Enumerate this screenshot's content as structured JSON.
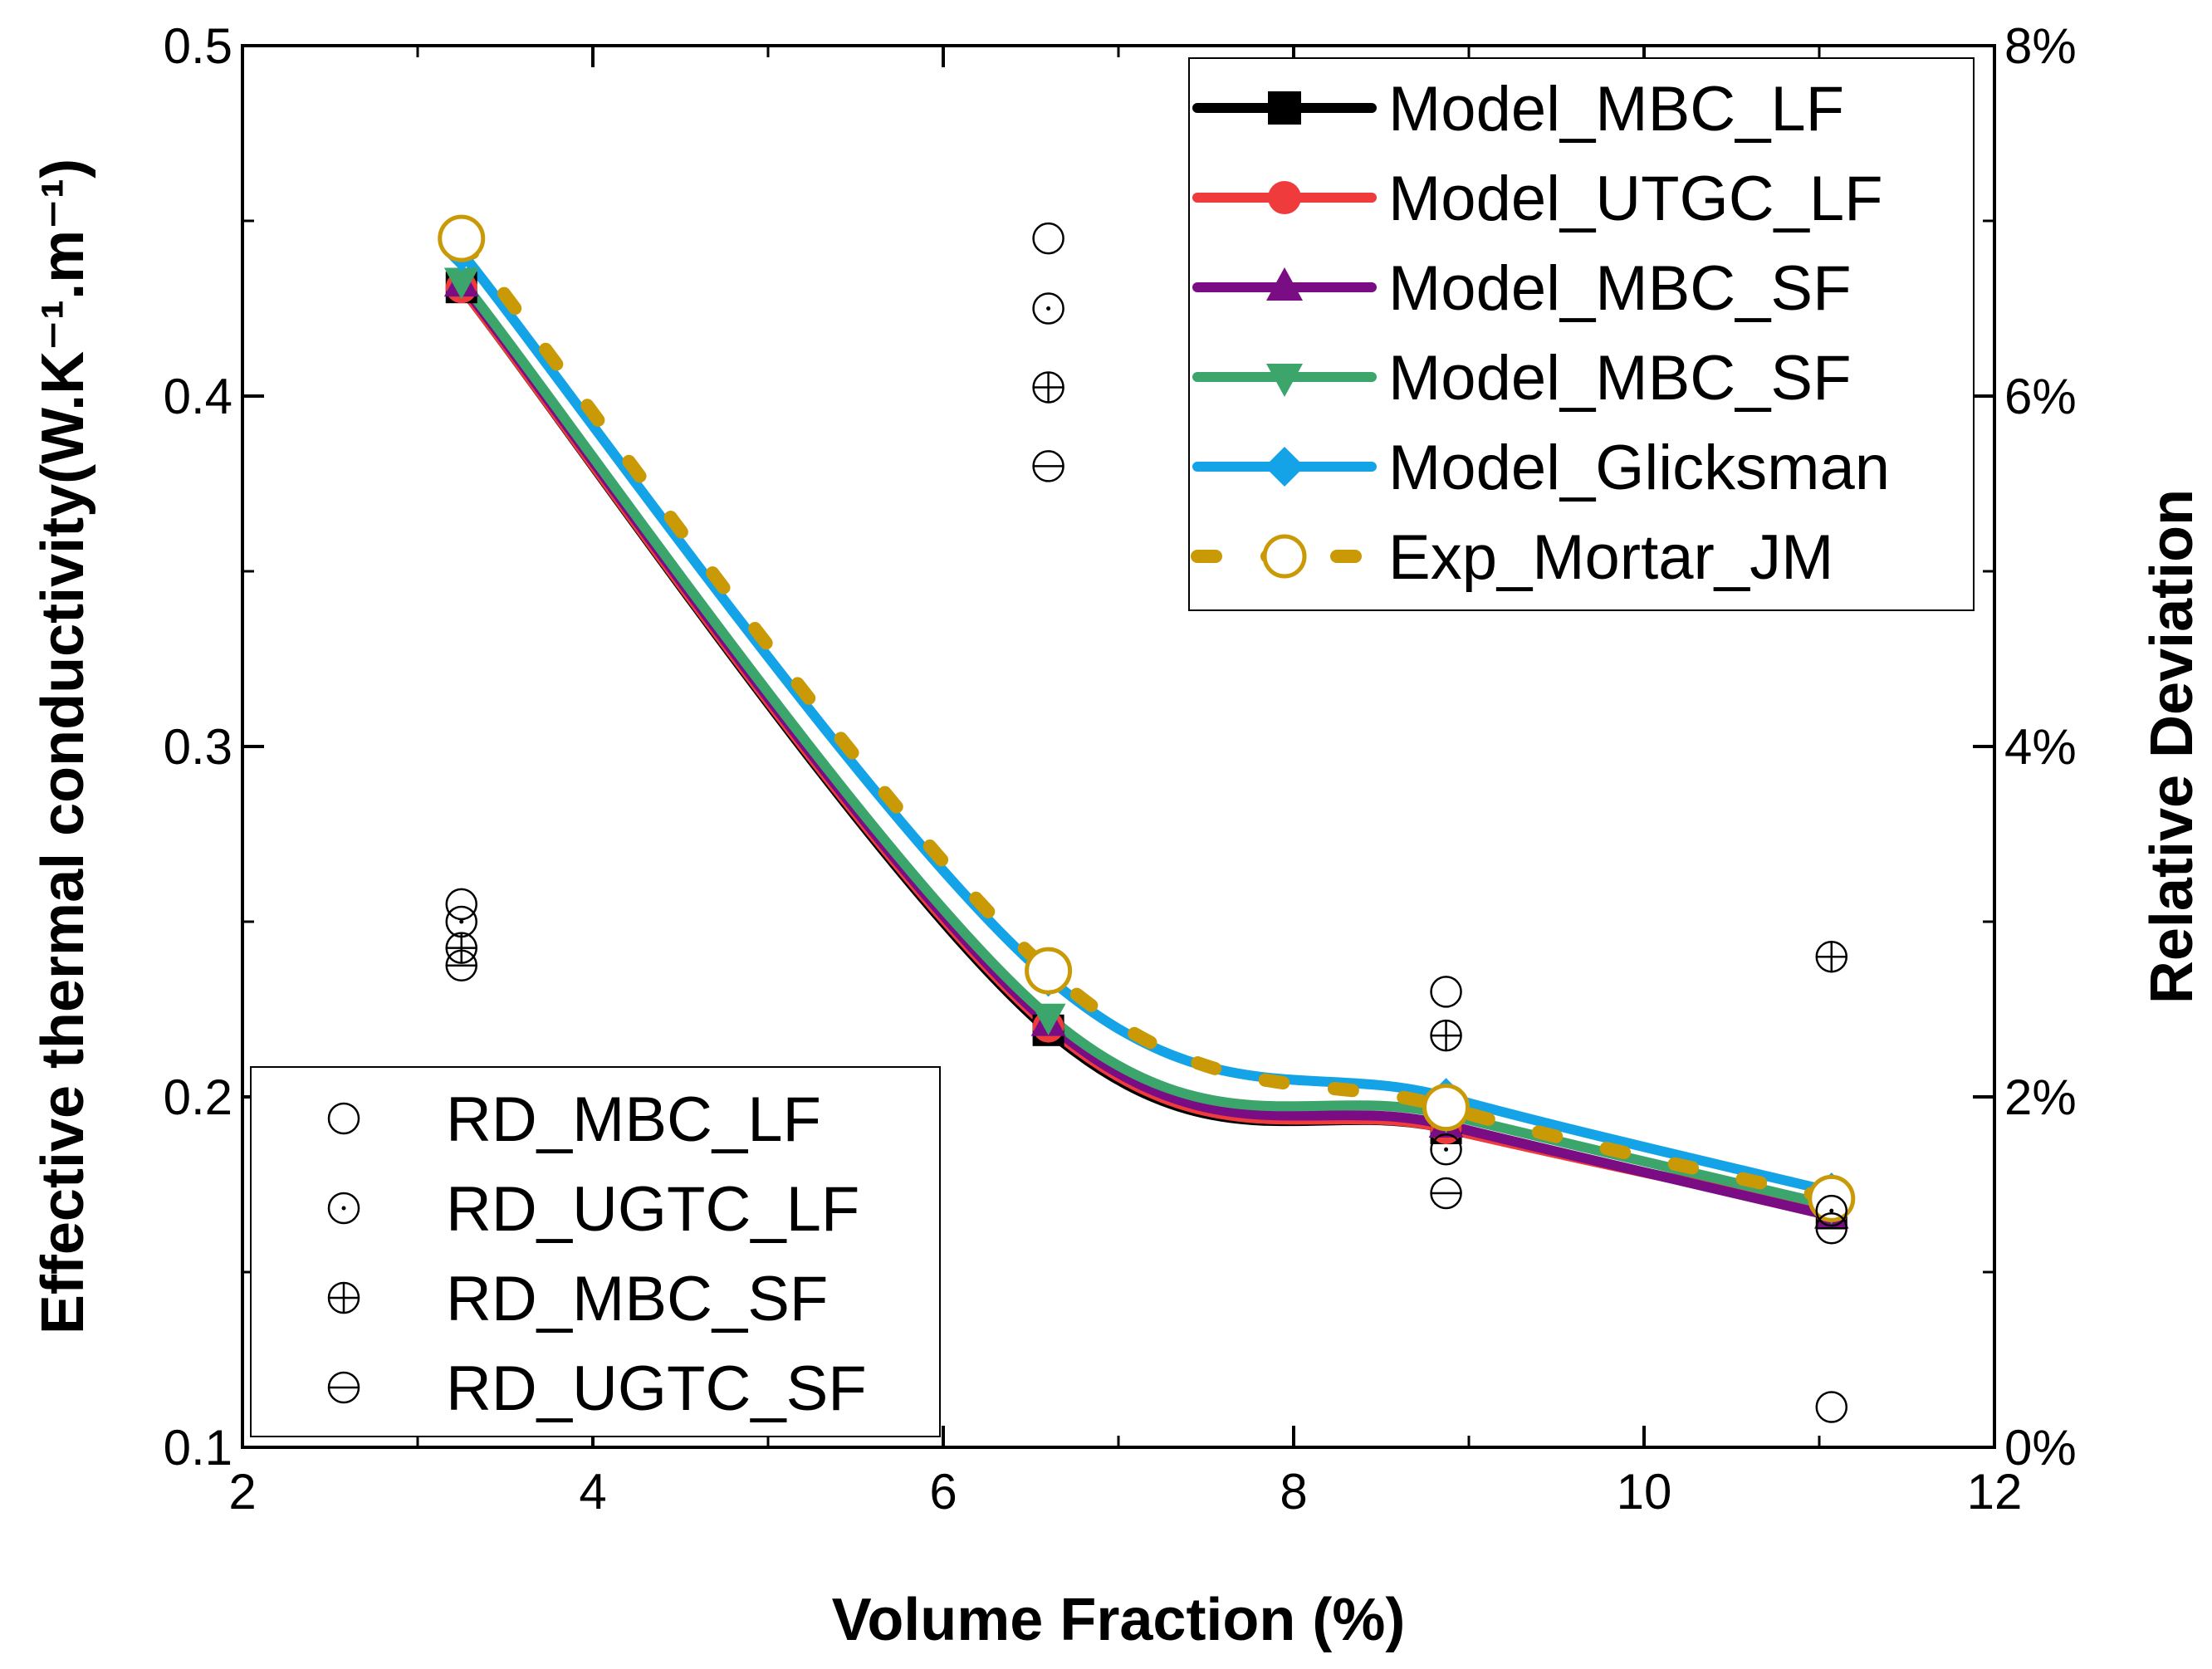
{
  "chart_data": {
    "type": "line",
    "title": "",
    "xlabel": "Volume Fraction (%)",
    "ylabel": "Effective thermal conductivity(W.K⁻¹.m⁻¹)",
    "y2label": "Relative Deviation",
    "xlim": [
      2,
      12
    ],
    "ylim": [
      0.1,
      0.5
    ],
    "y2lim": [
      0,
      8
    ],
    "x_ticks": [
      "2",
      "4",
      "6",
      "8",
      "10",
      "12"
    ],
    "y_ticks": [
      "0.1",
      "0.2",
      "0.3",
      "0.4",
      "0.5"
    ],
    "y2_ticks": [
      "0%",
      "2%",
      "4%",
      "6%",
      "8%"
    ],
    "x": [
      3.25,
      6.6,
      8.87,
      11.07
    ],
    "series": [
      {
        "name": "Model_MBC_LF",
        "axis": "left",
        "color": "#000000",
        "marker": "square",
        "values": [
          0.431,
          0.219,
          0.191,
          0.167
        ]
      },
      {
        "name": "Model_UTGC_LF",
        "axis": "left",
        "color": "#ef3b3b",
        "marker": "circle",
        "values": [
          0.431,
          0.22,
          0.191,
          0.167
        ]
      },
      {
        "name": "Model_MBC_SF",
        "axis": "left",
        "color": "#7b0d84",
        "marker": "triangle-up",
        "values": [
          0.432,
          0.221,
          0.192,
          0.166
        ]
      },
      {
        "name": "Model_MBC_SF",
        "axis": "left",
        "color": "#3ca56b",
        "marker": "triangle-down",
        "values": [
          0.433,
          0.223,
          0.195,
          0.169
        ]
      },
      {
        "name": "Model_Glicksman",
        "axis": "left",
        "color": "#15a3e8",
        "marker": "diamond",
        "values": [
          0.441,
          0.234,
          0.2,
          0.173
        ]
      },
      {
        "name": "Exp_Mortar_JM",
        "axis": "left",
        "color": "#c99a06",
        "marker": "open-circle",
        "dashed": true,
        "values": [
          0.445,
          0.236,
          0.197,
          0.171
        ]
      }
    ],
    "deviation_series": [
      {
        "name": "RD_MBC_LF",
        "axis": "right",
        "marker": "open-circle",
        "values": [
          3.1,
          6.9,
          2.6,
          0.23
        ]
      },
      {
        "name": "RD_UGTC_LF",
        "axis": "right",
        "marker": "dot-circle",
        "values": [
          3.0,
          6.5,
          1.7,
          1.35
        ]
      },
      {
        "name": "RD_MBC_SF",
        "axis": "right",
        "marker": "plus-circle",
        "values": [
          2.85,
          6.05,
          2.35,
          2.8
        ]
      },
      {
        "name": "RD_UGTC_SF",
        "axis": "right",
        "marker": "minus-circle",
        "values": [
          2.75,
          5.6,
          1.45,
          1.25
        ]
      }
    ],
    "legend_top": {
      "placement": "top-right"
    },
    "legend_bottom": {
      "placement": "bottom-left"
    }
  }
}
